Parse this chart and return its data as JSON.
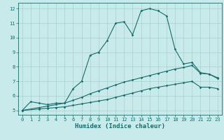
{
  "xlabel": "Humidex (Indice chaleur)",
  "ylabel": "",
  "bg_color": "#c8eaea",
  "grid_color": "#a8d0d0",
  "line_color": "#1a6b6b",
  "xlim": [
    -0.5,
    23.5
  ],
  "ylim": [
    4.7,
    12.4
  ],
  "xticks": [
    0,
    1,
    2,
    3,
    4,
    5,
    6,
    7,
    8,
    9,
    10,
    11,
    12,
    13,
    14,
    15,
    16,
    17,
    18,
    19,
    20,
    21,
    22,
    23
  ],
  "yticks": [
    5,
    6,
    7,
    8,
    9,
    10,
    11,
    12
  ],
  "line1_x": [
    0,
    1,
    2,
    3,
    4,
    5,
    6,
    7,
    8,
    9,
    10,
    11,
    12,
    13,
    14,
    15,
    16,
    17,
    18,
    19,
    20,
    21,
    22,
    23
  ],
  "line1_y": [
    5.0,
    5.6,
    5.5,
    5.4,
    5.5,
    5.5,
    6.5,
    7.0,
    8.8,
    9.0,
    9.8,
    11.0,
    11.1,
    10.2,
    11.85,
    12.0,
    11.85,
    11.5,
    9.2,
    8.2,
    8.3,
    7.6,
    7.5,
    7.2
  ],
  "line2_x": [
    0,
    2,
    3,
    4,
    5,
    6,
    7,
    8,
    9,
    10,
    11,
    12,
    13,
    14,
    15,
    16,
    17,
    18,
    19,
    20,
    21,
    22,
    23
  ],
  "line2_y": [
    5.0,
    5.2,
    5.3,
    5.4,
    5.5,
    5.7,
    5.9,
    6.15,
    6.35,
    6.55,
    6.75,
    6.95,
    7.1,
    7.25,
    7.4,
    7.55,
    7.7,
    7.85,
    7.95,
    8.1,
    7.55,
    7.5,
    7.25
  ],
  "line3_x": [
    0,
    2,
    3,
    4,
    5,
    6,
    7,
    8,
    9,
    10,
    11,
    12,
    13,
    14,
    15,
    16,
    17,
    18,
    19,
    20,
    21,
    22,
    23
  ],
  "line3_y": [
    5.0,
    5.1,
    5.15,
    5.2,
    5.25,
    5.35,
    5.45,
    5.55,
    5.65,
    5.75,
    5.9,
    6.05,
    6.2,
    6.35,
    6.5,
    6.6,
    6.7,
    6.8,
    6.9,
    7.0,
    6.6,
    6.6,
    6.5
  ]
}
